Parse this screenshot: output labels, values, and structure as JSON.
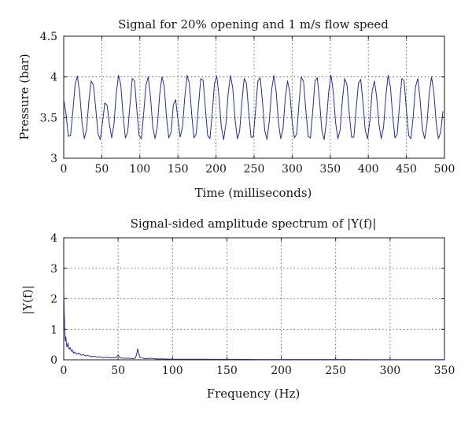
{
  "chart_data": [
    {
      "type": "line",
      "title": "Signal for 20% opening and 1 m/s flow speed",
      "xlabel": "Time (milliseconds)",
      "ylabel": "Pressure (bar)",
      "xlim": [
        0,
        500
      ],
      "ylim": [
        3,
        4.5
      ],
      "xticks": [
        0,
        50,
        100,
        150,
        200,
        250,
        300,
        350,
        400,
        450,
        500
      ],
      "yticks": [
        3,
        3.5,
        4,
        4.5
      ],
      "xtick_labels": [
        "0",
        "50",
        "100",
        "150",
        "200",
        "250",
        "300",
        "350",
        "400",
        "450",
        "500"
      ],
      "ytick_labels": [
        "3",
        "3.5",
        "4",
        "4.5"
      ],
      "grid": true,
      "series": [
        {
          "color": "#2b2b8c",
          "x": [
            0,
            3,
            6,
            9,
            12,
            15,
            18,
            21,
            24,
            27,
            30,
            33,
            36,
            39,
            42,
            45,
            48,
            51,
            54,
            57,
            60,
            63,
            66,
            69,
            72,
            75,
            78,
            81,
            84,
            87,
            90,
            93,
            96,
            99,
            102,
            105,
            108,
            111,
            114,
            117,
            120,
            123,
            126,
            129,
            132,
            135,
            138,
            141,
            144,
            147,
            150,
            153,
            156,
            159,
            162,
            165,
            168,
            171,
            174,
            177,
            180,
            183,
            186,
            189,
            192,
            195,
            198,
            201,
            204,
            207,
            210,
            213,
            216,
            219,
            222,
            225,
            228,
            231,
            234,
            237,
            240,
            243,
            246,
            249,
            252,
            255,
            258,
            261,
            264,
            267,
            270,
            273,
            276,
            279,
            282,
            285,
            288,
            291,
            294,
            297,
            300,
            303,
            306,
            309,
            312,
            315,
            318,
            321,
            324,
            327,
            330,
            333,
            336,
            339,
            342,
            345,
            348,
            351,
            354,
            357,
            360,
            363,
            366,
            369,
            372,
            375,
            378,
            381,
            384,
            387,
            390,
            393,
            396,
            399,
            402,
            405,
            408,
            411,
            414,
            417,
            420,
            423,
            426,
            429,
            432,
            435,
            438,
            441,
            444,
            447,
            450,
            453,
            456,
            459,
            462,
            465,
            468,
            471,
            474,
            477,
            480,
            483,
            486,
            489,
            492,
            495,
            498
          ],
          "y": [
            3.72,
            3.55,
            3.27,
            3.28,
            3.58,
            3.91,
            4.01,
            3.8,
            3.44,
            3.24,
            3.35,
            3.7,
            3.95,
            3.9,
            3.62,
            3.3,
            3.23,
            3.45,
            3.68,
            3.65,
            3.42,
            3.25,
            3.42,
            3.8,
            4.02,
            3.9,
            3.52,
            3.25,
            3.32,
            3.66,
            3.98,
            3.95,
            3.6,
            3.28,
            3.24,
            3.55,
            3.9,
            4.0,
            3.75,
            3.38,
            3.24,
            3.4,
            3.78,
            4.0,
            3.88,
            3.5,
            3.25,
            3.32,
            3.66,
            3.72,
            3.48,
            3.26,
            3.38,
            3.75,
            4.02,
            3.92,
            3.55,
            3.25,
            3.3,
            3.65,
            3.98,
            3.96,
            3.62,
            3.28,
            3.24,
            3.55,
            3.92,
            4.01,
            3.75,
            3.38,
            3.23,
            3.42,
            3.8,
            4.02,
            3.86,
            3.48,
            3.24,
            3.33,
            3.7,
            3.98,
            3.92,
            3.56,
            3.26,
            3.26,
            3.6,
            3.95,
            3.99,
            3.7,
            3.34,
            3.23,
            3.46,
            3.84,
            4.02,
            3.82,
            3.44,
            3.24,
            3.36,
            3.75,
            3.95,
            3.8,
            3.45,
            3.25,
            3.3,
            3.68,
            4.0,
            3.94,
            3.58,
            3.27,
            3.25,
            3.58,
            3.95,
            3.99,
            3.7,
            3.34,
            3.23,
            3.45,
            3.82,
            4.02,
            3.82,
            3.44,
            3.24,
            3.35,
            3.72,
            3.98,
            3.9,
            3.55,
            3.26,
            3.26,
            3.6,
            3.92,
            3.97,
            3.68,
            3.34,
            3.24,
            3.46,
            3.82,
            3.95,
            3.75,
            3.42,
            3.24,
            3.38,
            3.76,
            4.02,
            3.88,
            3.52,
            3.25,
            3.3,
            3.66,
            3.98,
            3.95,
            3.6,
            3.28,
            3.24,
            3.52,
            3.88,
            3.98,
            3.72,
            3.36,
            3.24,
            3.42,
            3.8,
            4.0,
            3.82,
            3.45,
            3.24,
            3.32,
            3.58
          ]
        }
      ]
    },
    {
      "type": "line",
      "title": "Signal-sided amplitude spectrum of |Y(f)|",
      "xlabel": "Frequency (Hz)",
      "ylabel": "|Y(f)|",
      "xlim": [
        0,
        350
      ],
      "ylim": [
        0,
        4
      ],
      "xticks": [
        0,
        50,
        100,
        150,
        200,
        250,
        300,
        350
      ],
      "yticks": [
        0,
        1,
        2,
        3,
        4
      ],
      "xtick_labels": [
        "0",
        "50",
        "100",
        "150",
        "200",
        "250",
        "300",
        "350"
      ],
      "ytick_labels": [
        "0",
        "1",
        "2",
        "3",
        "4"
      ],
      "grid": true,
      "series": [
        {
          "color": "#2b2b8c",
          "x": [
            0,
            0.5,
            1,
            1.5,
            2,
            2.5,
            3,
            4,
            5,
            6,
            7,
            8,
            9,
            10,
            12,
            14,
            16,
            18,
            20,
            22,
            24,
            26,
            28,
            30,
            33,
            36,
            40,
            44,
            48,
            50,
            52,
            56,
            60,
            64,
            66,
            67,
            68,
            69,
            70,
            72,
            75,
            80,
            85,
            90,
            100,
            110,
            120,
            140,
            160,
            180,
            200,
            220,
            240,
            260,
            280,
            300,
            320,
            340,
            350
          ],
          "y": [
            2.35,
            1.5,
            0.9,
            0.62,
            0.75,
            0.5,
            0.42,
            0.55,
            0.35,
            0.4,
            0.28,
            0.32,
            0.22,
            0.26,
            0.18,
            0.22,
            0.15,
            0.17,
            0.13,
            0.14,
            0.12,
            0.1,
            0.12,
            0.09,
            0.1,
            0.07,
            0.08,
            0.06,
            0.07,
            0.16,
            0.06,
            0.05,
            0.05,
            0.04,
            0.06,
            0.18,
            0.36,
            0.2,
            0.08,
            0.06,
            0.04,
            0.05,
            0.03,
            0.03,
            0.02,
            0.02,
            0.02,
            0.015,
            0.015,
            0.01,
            0.01,
            0.01,
            0.01,
            0.01,
            0.008,
            0.008,
            0.008,
            0.008,
            0.008
          ]
        }
      ]
    }
  ]
}
